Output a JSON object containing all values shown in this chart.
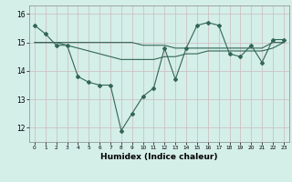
{
  "xlabel": "Humidex (Indice chaleur)",
  "x": [
    0,
    1,
    2,
    3,
    4,
    5,
    6,
    7,
    8,
    9,
    10,
    11,
    12,
    13,
    14,
    15,
    16,
    17,
    18,
    19,
    20,
    21,
    22,
    23
  ],
  "line1": [
    15.6,
    15.3,
    14.9,
    14.9,
    13.8,
    13.6,
    13.5,
    13.5,
    11.9,
    12.5,
    13.1,
    13.4,
    14.8,
    13.7,
    14.8,
    15.6,
    15.7,
    15.6,
    14.6,
    14.5,
    14.9,
    14.3,
    15.1,
    15.1
  ],
  "line2": [
    15.0,
    15.0,
    15.0,
    15.0,
    15.0,
    15.0,
    15.0,
    15.0,
    15.0,
    15.0,
    14.9,
    14.9,
    14.9,
    14.8,
    14.8,
    14.8,
    14.8,
    14.8,
    14.8,
    14.8,
    14.8,
    14.8,
    15.0,
    15.0
  ],
  "line3": [
    15.0,
    15.0,
    15.0,
    14.9,
    14.8,
    14.7,
    14.6,
    14.5,
    14.4,
    14.4,
    14.4,
    14.4,
    14.5,
    14.5,
    14.6,
    14.6,
    14.7,
    14.7,
    14.7,
    14.7,
    14.7,
    14.7,
    14.8,
    15.0
  ],
  "background_color": "#d4eee8",
  "grid_color": "#ccbbbb",
  "line_color": "#336655",
  "ylim": [
    11.5,
    16.3
  ],
  "xlim": [
    -0.5,
    23.5
  ],
  "yticks": [
    12,
    13,
    14,
    15,
    16
  ],
  "xticks": [
    0,
    1,
    2,
    3,
    4,
    5,
    6,
    7,
    8,
    9,
    10,
    11,
    12,
    13,
    14,
    15,
    16,
    17,
    18,
    19,
    20,
    21,
    22,
    23
  ],
  "tick_color": "#000000",
  "xlabel_fontsize": 6.5,
  "xlabel_fontweight": "bold"
}
